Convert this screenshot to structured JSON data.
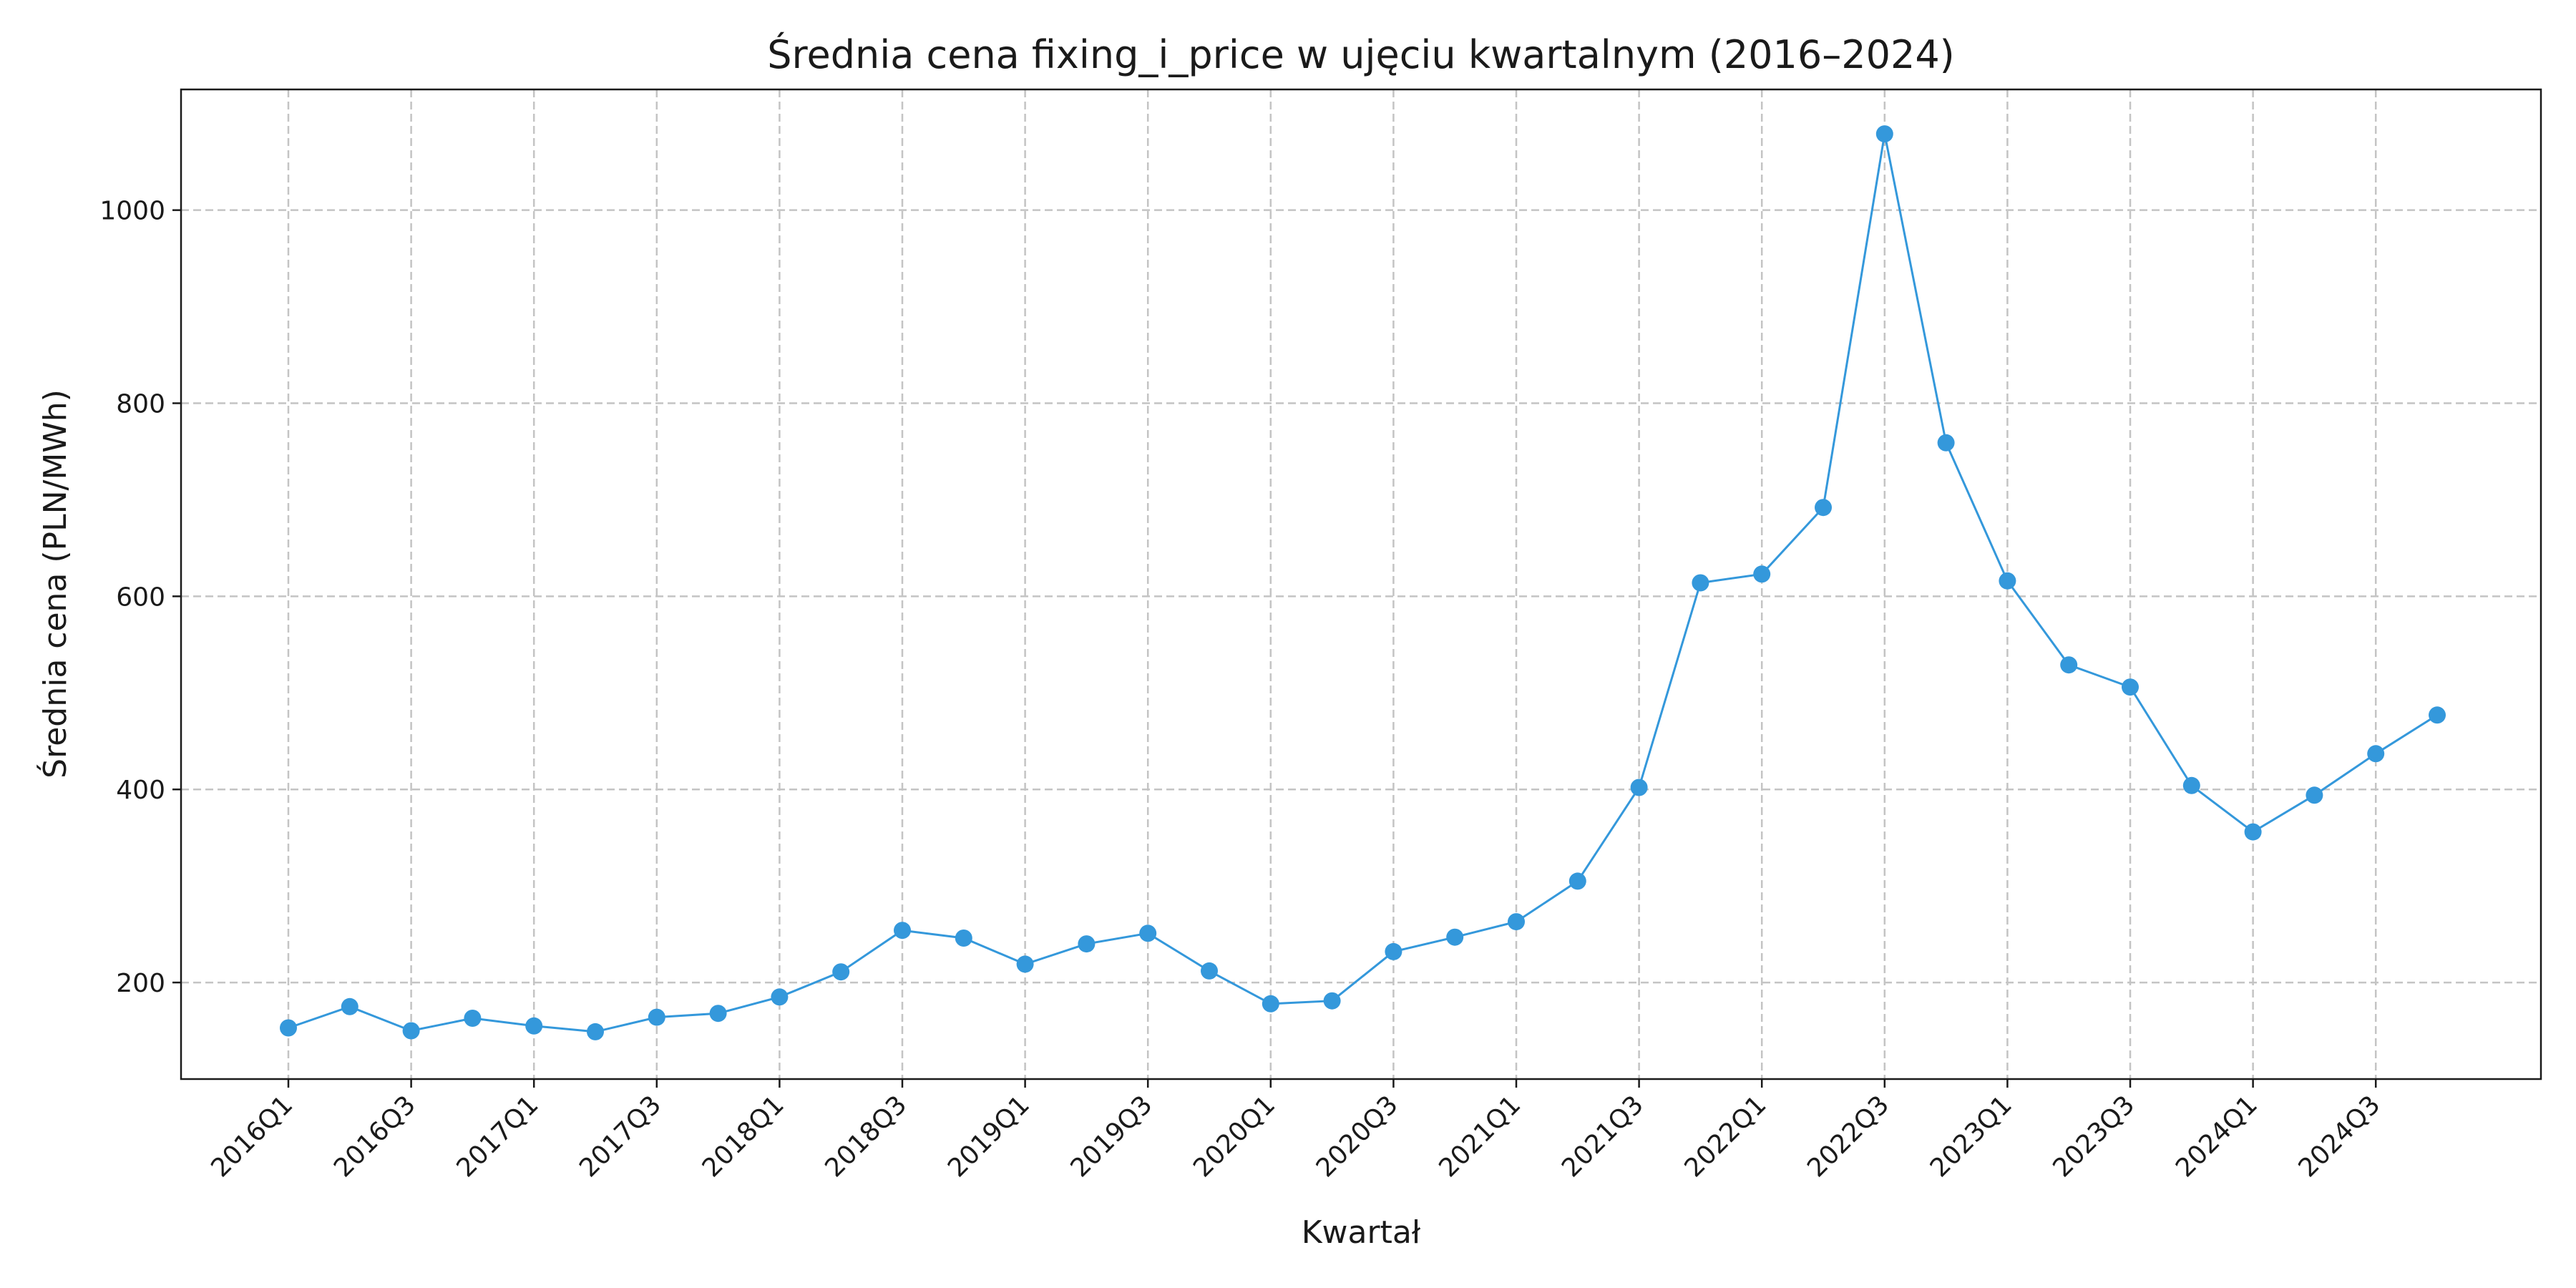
{
  "chart_data": {
    "type": "line",
    "title": "Średnia cena fixing_i_price w ujęciu kwartalnym (2016–2024)",
    "xlabel": "Kwartał",
    "ylabel": "Średnia cena (PLN/MWh)",
    "categories": [
      "2016Q1",
      "2016Q2",
      "2016Q3",
      "2016Q4",
      "2017Q1",
      "2017Q2",
      "2017Q3",
      "2017Q4",
      "2018Q1",
      "2018Q2",
      "2018Q3",
      "2018Q4",
      "2019Q1",
      "2019Q2",
      "2019Q3",
      "2019Q4",
      "2020Q1",
      "2020Q2",
      "2020Q3",
      "2020Q4",
      "2021Q1",
      "2021Q2",
      "2021Q3",
      "2021Q4",
      "2022Q1",
      "2022Q2",
      "2022Q3",
      "2022Q4",
      "2023Q1",
      "2023Q2",
      "2023Q3",
      "2023Q4",
      "2024Q1",
      "2024Q2",
      "2024Q3",
      "2024Q4"
    ],
    "x_tick_labels": [
      "2016Q1",
      "2016Q3",
      "2017Q1",
      "2017Q3",
      "2018Q1",
      "2018Q3",
      "2019Q1",
      "2019Q3",
      "2020Q1",
      "2020Q3",
      "2021Q1",
      "2021Q3",
      "2022Q1",
      "2022Q3",
      "2023Q1",
      "2023Q3",
      "2024Q1",
      "2024Q3"
    ],
    "series": [
      {
        "values": [
          153,
          175,
          150,
          163,
          155,
          149,
          164,
          168,
          185,
          211,
          254,
          246,
          219,
          240,
          251,
          212,
          178,
          181,
          232,
          247,
          263,
          305,
          402,
          614,
          623,
          692,
          1079,
          759,
          616,
          529,
          506,
          404,
          356,
          394,
          437,
          477
        ]
      }
    ],
    "yticks": [
      200,
      400,
      600,
      800,
      1000
    ],
    "ylim": [
      100,
      1125
    ],
    "grid": true,
    "color": "#3498db"
  }
}
